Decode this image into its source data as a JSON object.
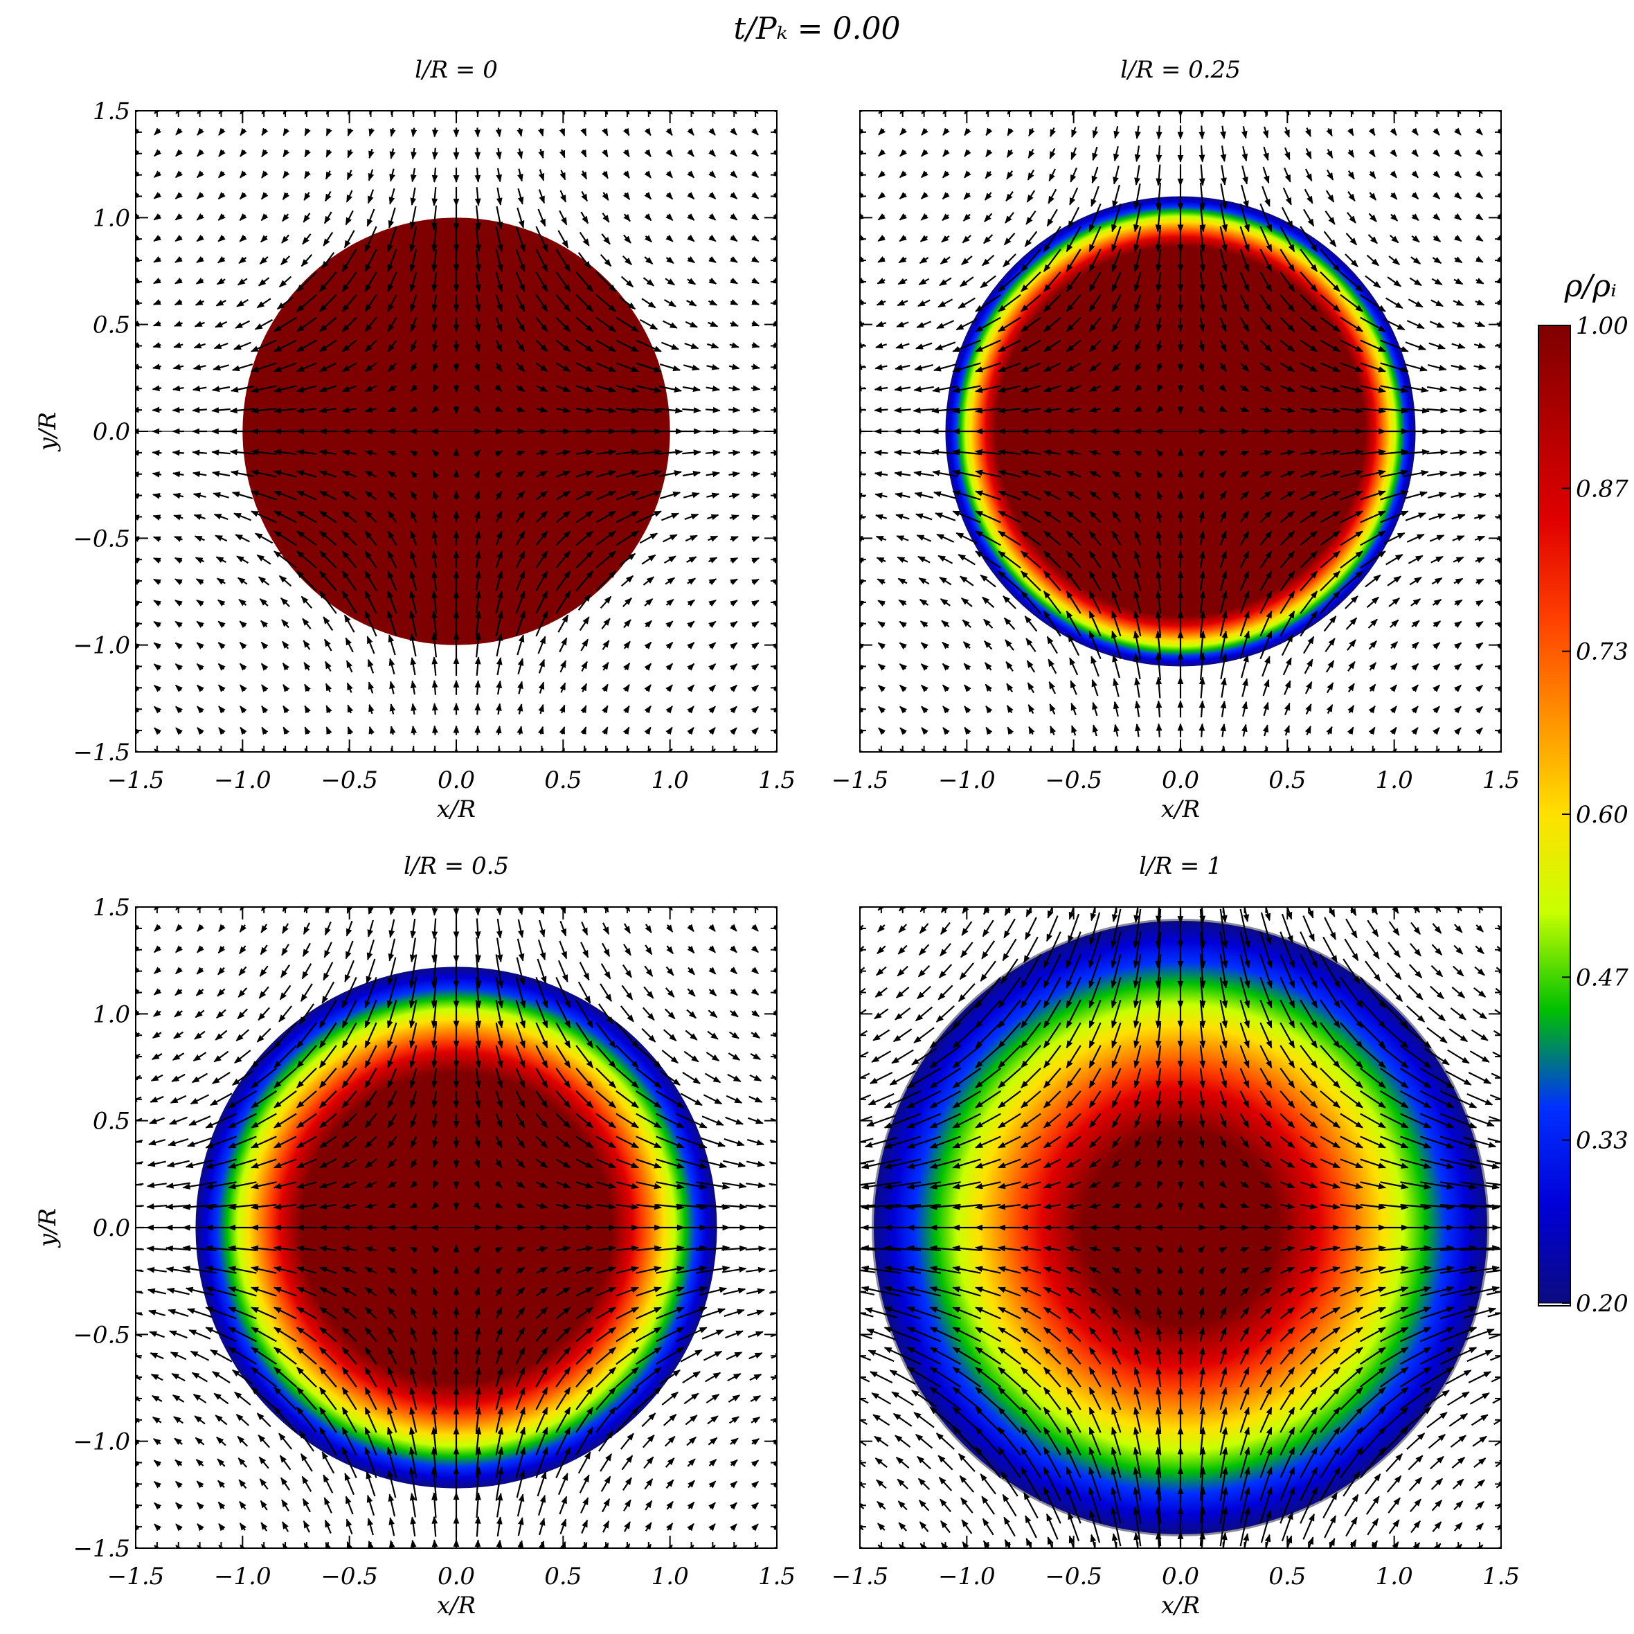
{
  "figure_title": "t/Pₖ = 0.00",
  "chart_data": [
    {
      "type": "heatmap",
      "title": "l/R = 0",
      "l_over_R": 0,
      "edge_radius": 1.0,
      "xlabel": "x/R",
      "ylabel": "y/R",
      "xlim": [
        -1.5,
        1.5
      ],
      "ylim": [
        -1.5,
        1.5
      ],
      "xticks": [
        "−1.5",
        "−1.0",
        "−0.5",
        "0.0",
        "0.5",
        "1.0",
        "1.5"
      ],
      "yticks": [
        "−1.5",
        "−1.0",
        "−0.5",
        "0.0",
        "0.5",
        "1.0",
        "1.5"
      ],
      "overlay": "velocity vector field (arrows)"
    },
    {
      "type": "heatmap",
      "title": "l/R = 0.25",
      "l_over_R": 0.25,
      "edge_radius": 1.1,
      "xlabel": "x/R",
      "ylabel": "",
      "xlim": [
        -1.5,
        1.5
      ],
      "ylim": [
        -1.5,
        1.5
      ],
      "xticks": [
        "−1.5",
        "−1.0",
        "−0.5",
        "0.0",
        "0.5",
        "1.0",
        "1.5"
      ],
      "yticks": [],
      "overlay": "velocity vector field (arrows)"
    },
    {
      "type": "heatmap",
      "title": "l/R = 0.5",
      "l_over_R": 0.5,
      "edge_radius": 1.22,
      "xlabel": "x/R",
      "ylabel": "y/R",
      "xlim": [
        -1.5,
        1.5
      ],
      "ylim": [
        -1.5,
        1.5
      ],
      "xticks": [
        "−1.5",
        "−1.0",
        "−0.5",
        "0.0",
        "0.5",
        "1.0",
        "1.5"
      ],
      "yticks": [
        "−1.5",
        "−1.0",
        "−0.5",
        "0.0",
        "0.5",
        "1.0",
        "1.5"
      ],
      "overlay": "velocity vector field (arrows)"
    },
    {
      "type": "heatmap",
      "title": "l/R = 1",
      "l_over_R": 1,
      "edge_radius": 1.44,
      "xlabel": "x/R",
      "ylabel": "",
      "xlim": [
        -1.5,
        1.5
      ],
      "ylim": [
        -1.5,
        1.5
      ],
      "xticks": [
        "−1.5",
        "−1.0",
        "−0.5",
        "0.0",
        "0.5",
        "1.0",
        "1.5"
      ],
      "yticks": [],
      "overlay": "velocity vector field (arrows)"
    }
  ],
  "colorbar": {
    "label": "ρ/ρᵢ",
    "range": [
      0.2,
      1.0
    ],
    "ticks": [
      "1.00",
      "0.87",
      "0.73",
      "0.60",
      "0.47",
      "0.33",
      "0.20"
    ],
    "colormap": [
      "#0b0b80",
      "#0000d8",
      "#0030ff",
      "#00c000",
      "#c8ff00",
      "#ffe000",
      "#ff9000",
      "#ff4000",
      "#e00000",
      "#b00000",
      "#7f0000"
    ]
  }
}
